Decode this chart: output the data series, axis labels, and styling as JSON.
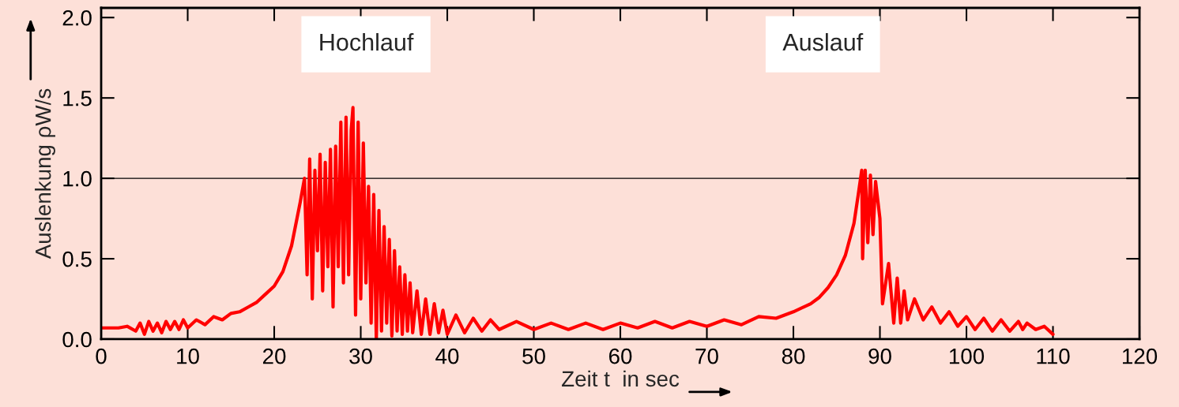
{
  "chart_data": {
    "type": "line",
    "xlabel": "Zeit t  in sec",
    "ylabel": "Auslenkung ρW/s",
    "annotations": [
      "Hochlauf",
      "Auslauf"
    ],
    "xlim": [
      0,
      120
    ],
    "xticks": [
      0,
      10,
      20,
      30,
      40,
      50,
      60,
      70,
      80,
      90,
      100,
      110,
      120
    ],
    "ylim": [
      0,
      2.06
    ],
    "yticks": [
      {
        "value": 0,
        "label": "0.0"
      },
      0.5,
      {
        "value": 1,
        "label": "1.0"
      },
      1.5,
      {
        "value": 2,
        "label": "2.0"
      }
    ],
    "ref_lines": [
      {
        "axis": "y",
        "value": 1.0,
        "color": "#000000"
      }
    ],
    "grid": false,
    "marker": "none",
    "line_style": "solid",
    "series": [
      {
        "color": "#ff0000",
        "x": [
          0,
          2,
          3,
          4,
          4.5,
          5,
          5.5,
          6,
          6.5,
          7,
          7.5,
          8,
          8.5,
          9,
          9.5,
          10,
          11,
          12,
          13,
          14,
          15,
          16,
          17,
          18,
          19,
          20,
          21,
          22,
          23,
          23.5,
          23.8,
          24.1,
          24.4,
          24.7,
          25.0,
          25.3,
          25.6,
          25.9,
          26.2,
          26.5,
          26.8,
          27.1,
          27.4,
          27.7,
          28.0,
          28.3,
          28.6,
          28.9,
          29.1,
          29.4,
          29.7,
          30.0,
          30.3,
          30.6,
          30.9,
          31.2,
          31.5,
          31.8,
          32.1,
          32.4,
          32.7,
          33.0,
          33.3,
          33.6,
          33.9,
          34.2,
          34.5,
          34.8,
          35.1,
          35.4,
          35.7,
          36.0,
          36.5,
          37,
          37.5,
          38,
          38.5,
          39,
          39.5,
          40,
          41,
          42,
          43,
          44,
          45,
          46,
          48,
          50,
          52,
          54,
          56,
          58,
          60,
          62,
          64,
          66,
          68,
          70,
          72,
          74,
          76,
          78,
          80,
          82,
          83,
          84,
          85,
          86,
          87,
          87.5,
          87.9,
          88.0,
          88.3,
          88.6,
          88.9,
          89.2,
          89.5,
          90.0,
          90.3,
          91.0,
          91.6,
          92.0,
          92.4,
          92.8,
          93.2,
          94,
          95,
          96,
          97,
          98,
          99,
          100,
          101,
          102,
          103,
          104,
          105,
          106,
          106.5,
          107,
          108,
          109,
          110
        ],
        "values": [
          0.07,
          0.07,
          0.08,
          0.05,
          0.1,
          0.03,
          0.11,
          0.05,
          0.1,
          0.04,
          0.11,
          0.06,
          0.11,
          0.06,
          0.12,
          0.07,
          0.12,
          0.09,
          0.14,
          0.12,
          0.16,
          0.17,
          0.2,
          0.23,
          0.28,
          0.33,
          0.42,
          0.58,
          0.85,
          1.0,
          0.4,
          1.12,
          0.25,
          1.05,
          0.55,
          1.15,
          0.3,
          1.1,
          0.45,
          1.18,
          0.2,
          1.2,
          0.45,
          1.35,
          0.35,
          1.38,
          0.4,
          1.3,
          1.44,
          0.15,
          1.35,
          0.25,
          1.22,
          0.35,
          0.95,
          0.1,
          0.9,
          0.0,
          0.8,
          0.05,
          0.7,
          0.1,
          0.62,
          0.02,
          0.55,
          0.05,
          0.45,
          0.03,
          0.4,
          0.05,
          0.35,
          0.04,
          0.3,
          0.03,
          0.25,
          0.03,
          0.22,
          0.04,
          0.18,
          0.03,
          0.15,
          0.04,
          0.13,
          0.05,
          0.12,
          0.06,
          0.11,
          0.06,
          0.1,
          0.06,
          0.1,
          0.06,
          0.1,
          0.07,
          0.11,
          0.07,
          0.11,
          0.08,
          0.12,
          0.09,
          0.14,
          0.13,
          0.17,
          0.22,
          0.26,
          0.32,
          0.4,
          0.52,
          0.72,
          0.9,
          1.05,
          0.5,
          1.05,
          0.6,
          1.02,
          0.65,
          0.98,
          0.75,
          0.22,
          0.47,
          0.1,
          0.38,
          0.1,
          0.3,
          0.12,
          0.25,
          0.12,
          0.2,
          0.1,
          0.17,
          0.08,
          0.14,
          0.06,
          0.13,
          0.05,
          0.12,
          0.05,
          0.11,
          0.06,
          0.1,
          0.06,
          0.08,
          0.03
        ]
      }
    ]
  }
}
